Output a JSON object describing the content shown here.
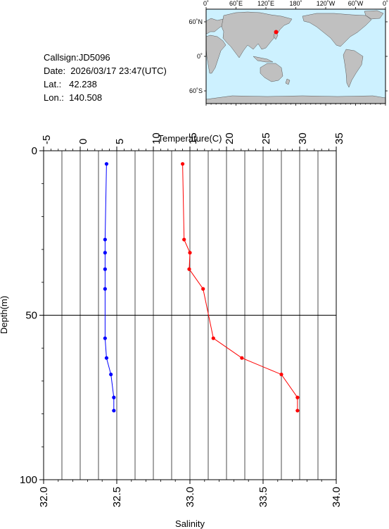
{
  "info": {
    "callsign": "Callsign:JD5096",
    "date": "Date:  2026/03/17 23:47(UTC)",
    "lat": "Lat.:   42.238",
    "lon": "Lon.:  140.508"
  },
  "map": {
    "top_labels": [
      "0˚",
      "60˚E",
      "120˚E",
      "180˚",
      "120˚W",
      "60˚W",
      "0˚"
    ],
    "lat_labels": [
      "60˚N",
      "0˚",
      "60˚S"
    ],
    "station": {
      "lat": 42.238,
      "lon": 140.508
    },
    "colors": {
      "ocean": "#cdf1ff",
      "land": "#c0c0c0",
      "marker": "#ff0000"
    }
  },
  "chart_data": {
    "type": "line",
    "xlabel_top": "Temperature(C)",
    "xlabel_bottom": "Salinity",
    "ylabel": "Depth(m)",
    "temperature_axis": {
      "range": [
        -5,
        35
      ],
      "ticks": [
        "-5",
        "0",
        "5",
        "10",
        "15",
        "20",
        "25",
        "30",
        "35"
      ]
    },
    "salinity_axis": {
      "range": [
        32.0,
        34.0
      ],
      "ticks": [
        "32.0",
        "32.5",
        "33.0",
        "33.5",
        "34.0"
      ]
    },
    "depth_axis": {
      "range": [
        0,
        100
      ],
      "inverted": true,
      "ticks": [
        "0",
        "50",
        "100"
      ]
    },
    "grid": true,
    "series": [
      {
        "name": "Temperature",
        "axis": "temperature",
        "color": "#ff0000",
        "points": [
          [
            14.0,
            4
          ],
          [
            14.2,
            27
          ],
          [
            15.0,
            31
          ],
          [
            14.9,
            36
          ],
          [
            16.8,
            42
          ],
          [
            18.2,
            57
          ],
          [
            22.1,
            63
          ],
          [
            27.5,
            68
          ],
          [
            29.7,
            75
          ],
          [
            29.7,
            79
          ]
        ]
      },
      {
        "name": "Salinity",
        "axis": "salinity",
        "color": "#0000ff",
        "points": [
          [
            32.43,
            4
          ],
          [
            32.42,
            27
          ],
          [
            32.42,
            31
          ],
          [
            32.42,
            36
          ],
          [
            32.42,
            42
          ],
          [
            32.42,
            57
          ],
          [
            32.43,
            63
          ],
          [
            32.46,
            68
          ],
          [
            32.48,
            75
          ],
          [
            32.48,
            79
          ]
        ]
      }
    ]
  }
}
